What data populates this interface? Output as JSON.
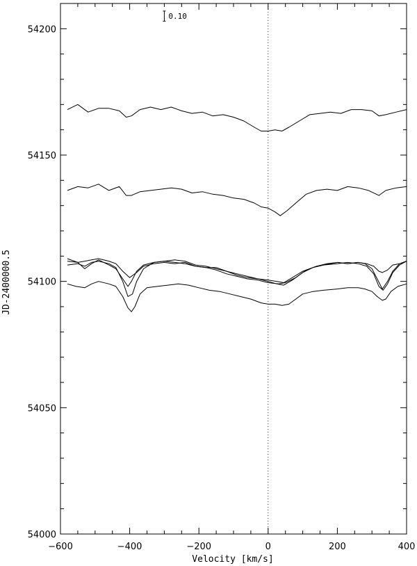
{
  "chart_data": {
    "type": "line",
    "title": "",
    "xlabel": "Velocity [km/s]",
    "ylabel": "JD-2400000.5",
    "xlim": [
      -600,
      400
    ],
    "ylim": [
      54000,
      54210
    ],
    "x_ticks": [
      -600,
      -400,
      -200,
      0,
      200,
      400
    ],
    "y_ticks": [
      54000,
      54050,
      54100,
      54150,
      54200
    ],
    "x_minor_step": 50,
    "y_minor_step": 10,
    "reference_line_x": 0,
    "scale_bar": {
      "label": "0.10",
      "x": -300,
      "y_top": 54207,
      "y_bottom": 54203
    },
    "series": [
      {
        "points": [
          [
            -580,
            54168
          ],
          [
            -550,
            54170
          ],
          [
            -520,
            54167
          ],
          [
            -490,
            54168.5
          ],
          [
            -460,
            54168.5
          ],
          [
            -430,
            54167.5
          ],
          [
            -410,
            54165
          ],
          [
            -395,
            54165.5
          ],
          [
            -370,
            54168
          ],
          [
            -340,
            54169
          ],
          [
            -310,
            54168
          ],
          [
            -280,
            54169
          ],
          [
            -250,
            54167.5
          ],
          [
            -220,
            54166.5
          ],
          [
            -190,
            54167
          ],
          [
            -160,
            54165.5
          ],
          [
            -130,
            54166
          ],
          [
            -100,
            54165
          ],
          [
            -70,
            54163.5
          ],
          [
            -40,
            54161
          ],
          [
            -20,
            54159.5
          ],
          [
            0,
            54159.5
          ],
          [
            20,
            54160
          ],
          [
            40,
            54159.5
          ],
          [
            60,
            54161
          ],
          [
            90,
            54163.5
          ],
          [
            120,
            54166
          ],
          [
            150,
            54166.5
          ],
          [
            180,
            54167
          ],
          [
            210,
            54166.5
          ],
          [
            240,
            54168
          ],
          [
            270,
            54168
          ],
          [
            300,
            54167.5
          ],
          [
            320,
            54165.5
          ],
          [
            340,
            54166
          ],
          [
            370,
            54167
          ],
          [
            400,
            54168
          ]
        ]
      },
      {
        "points": [
          [
            -580,
            54136
          ],
          [
            -550,
            54137.5
          ],
          [
            -520,
            54137
          ],
          [
            -490,
            54138.5
          ],
          [
            -460,
            54136
          ],
          [
            -430,
            54137.5
          ],
          [
            -410,
            54134
          ],
          [
            -395,
            54134
          ],
          [
            -370,
            54135.5
          ],
          [
            -340,
            54136
          ],
          [
            -310,
            54136.5
          ],
          [
            -280,
            54137
          ],
          [
            -250,
            54136.5
          ],
          [
            -220,
            54135
          ],
          [
            -190,
            54135.5
          ],
          [
            -160,
            54134.5
          ],
          [
            -130,
            54134
          ],
          [
            -100,
            54133
          ],
          [
            -70,
            54132.5
          ],
          [
            -40,
            54131
          ],
          [
            -20,
            54129.5
          ],
          [
            0,
            54129
          ],
          [
            20,
            54127.5
          ],
          [
            35,
            54126
          ],
          [
            55,
            54128
          ],
          [
            80,
            54131
          ],
          [
            110,
            54134.5
          ],
          [
            140,
            54136
          ],
          [
            170,
            54136.5
          ],
          [
            200,
            54136
          ],
          [
            230,
            54137.5
          ],
          [
            260,
            54137
          ],
          [
            290,
            54136
          ],
          [
            320,
            54134
          ],
          [
            340,
            54136
          ],
          [
            370,
            54137
          ],
          [
            400,
            54137.5
          ]
        ]
      },
      {
        "points": [
          [
            -580,
            54108
          ],
          [
            -550,
            54107.5
          ],
          [
            -530,
            54105
          ],
          [
            -510,
            54107
          ],
          [
            -490,
            54108.5
          ],
          [
            -460,
            54106.5
          ],
          [
            -440,
            54105
          ],
          [
            -420,
            54101
          ],
          [
            -405,
            54098
          ],
          [
            -395,
            54100
          ],
          [
            -380,
            54104
          ],
          [
            -360,
            54106.5
          ],
          [
            -330,
            54107.5
          ],
          [
            -300,
            54108
          ],
          [
            -270,
            54107.5
          ],
          [
            -240,
            54107
          ],
          [
            -210,
            54106
          ],
          [
            -180,
            54105.5
          ],
          [
            -150,
            54104.5
          ],
          [
            -120,
            54103
          ],
          [
            -90,
            54102
          ],
          [
            -60,
            54101
          ],
          [
            -30,
            54100.5
          ],
          [
            0,
            54099.5
          ],
          [
            30,
            54099
          ],
          [
            50,
            54099.5
          ],
          [
            80,
            54101.5
          ],
          [
            110,
            54104.5
          ],
          [
            140,
            54106
          ],
          [
            170,
            54107
          ],
          [
            200,
            54107.5
          ],
          [
            230,
            54107
          ],
          [
            260,
            54107.5
          ],
          [
            280,
            54107
          ],
          [
            300,
            54105
          ],
          [
            315,
            54101
          ],
          [
            330,
            54097
          ],
          [
            345,
            54100
          ],
          [
            360,
            54104
          ],
          [
            380,
            54107
          ],
          [
            400,
            54108
          ]
        ]
      },
      {
        "points": [
          [
            -580,
            54106.5
          ],
          [
            -550,
            54107
          ],
          [
            -530,
            54106
          ],
          [
            -510,
            54107.5
          ],
          [
            -490,
            54108
          ],
          [
            -460,
            54107
          ],
          [
            -440,
            54105.5
          ],
          [
            -420,
            54100
          ],
          [
            -405,
            54094
          ],
          [
            -392,
            54095
          ],
          [
            -380,
            54100
          ],
          [
            -360,
            54105
          ],
          [
            -330,
            54107.5
          ],
          [
            -300,
            54108
          ],
          [
            -270,
            54108.5
          ],
          [
            -240,
            54108
          ],
          [
            -210,
            54106.5
          ],
          [
            -180,
            54106
          ],
          [
            -150,
            54105
          ],
          [
            -120,
            54104
          ],
          [
            -90,
            54103
          ],
          [
            -60,
            54102
          ],
          [
            -30,
            54101
          ],
          [
            0,
            54100
          ],
          [
            25,
            54099
          ],
          [
            45,
            54098.5
          ],
          [
            70,
            54100.5
          ],
          [
            100,
            54103.5
          ],
          [
            130,
            54105.5
          ],
          [
            160,
            54106.5
          ],
          [
            200,
            54107
          ],
          [
            230,
            54107.5
          ],
          [
            260,
            54107
          ],
          [
            285,
            54106
          ],
          [
            305,
            54103
          ],
          [
            320,
            54098
          ],
          [
            332,
            54096.5
          ],
          [
            345,
            54099
          ],
          [
            360,
            54103.5
          ],
          [
            380,
            54106.5
          ],
          [
            400,
            54108
          ]
        ]
      },
      {
        "points": [
          [
            -580,
            54109
          ],
          [
            -550,
            54107.5
          ],
          [
            -530,
            54108
          ],
          [
            -510,
            54108.5
          ],
          [
            -490,
            54109
          ],
          [
            -460,
            54108
          ],
          [
            -440,
            54107
          ],
          [
            -420,
            54104
          ],
          [
            -400,
            54101.5
          ],
          [
            -380,
            54103.5
          ],
          [
            -360,
            54106
          ],
          [
            -330,
            54107
          ],
          [
            -300,
            54107.5
          ],
          [
            -270,
            54107
          ],
          [
            -240,
            54107.5
          ],
          [
            -210,
            54106
          ],
          [
            -180,
            54105.5
          ],
          [
            -150,
            54105.5
          ],
          [
            -120,
            54104
          ],
          [
            -90,
            54102.5
          ],
          [
            -60,
            54101.5
          ],
          [
            -30,
            54101
          ],
          [
            0,
            54100.5
          ],
          [
            25,
            54100
          ],
          [
            45,
            54099.5
          ],
          [
            70,
            54101.5
          ],
          [
            100,
            54104
          ],
          [
            130,
            54105.5
          ],
          [
            160,
            54106.5
          ],
          [
            200,
            54107.5
          ],
          [
            230,
            54107
          ],
          [
            260,
            54107.5
          ],
          [
            285,
            54107
          ],
          [
            305,
            54106
          ],
          [
            320,
            54104
          ],
          [
            330,
            54103.5
          ],
          [
            345,
            54104.5
          ],
          [
            360,
            54106.5
          ],
          [
            380,
            54107
          ],
          [
            400,
            54108
          ]
        ]
      },
      {
        "points": [
          [
            -580,
            54099
          ],
          [
            -555,
            54098
          ],
          [
            -530,
            54097.5
          ],
          [
            -510,
            54099
          ],
          [
            -490,
            54100
          ],
          [
            -460,
            54099
          ],
          [
            -440,
            54098
          ],
          [
            -420,
            54094
          ],
          [
            -405,
            54089.5
          ],
          [
            -395,
            54088
          ],
          [
            -385,
            54090
          ],
          [
            -370,
            54095
          ],
          [
            -350,
            54097.5
          ],
          [
            -320,
            54098
          ],
          [
            -290,
            54098.5
          ],
          [
            -260,
            54099
          ],
          [
            -230,
            54098.5
          ],
          [
            -200,
            54097.5
          ],
          [
            -170,
            54096.5
          ],
          [
            -140,
            54096
          ],
          [
            -110,
            54095
          ],
          [
            -80,
            54094
          ],
          [
            -50,
            54093
          ],
          [
            -20,
            54091.5
          ],
          [
            0,
            54091
          ],
          [
            20,
            54091
          ],
          [
            40,
            54090.5
          ],
          [
            60,
            54091
          ],
          [
            80,
            54093
          ],
          [
            100,
            54095
          ],
          [
            130,
            54096
          ],
          [
            160,
            54096.5
          ],
          [
            200,
            54097
          ],
          [
            230,
            54097.5
          ],
          [
            260,
            54097.5
          ],
          [
            280,
            54097
          ],
          [
            300,
            54096
          ],
          [
            315,
            54094
          ],
          [
            330,
            54092.5
          ],
          [
            340,
            54093
          ],
          [
            355,
            54096
          ],
          [
            375,
            54098
          ],
          [
            400,
            54099
          ]
        ]
      }
    ]
  }
}
